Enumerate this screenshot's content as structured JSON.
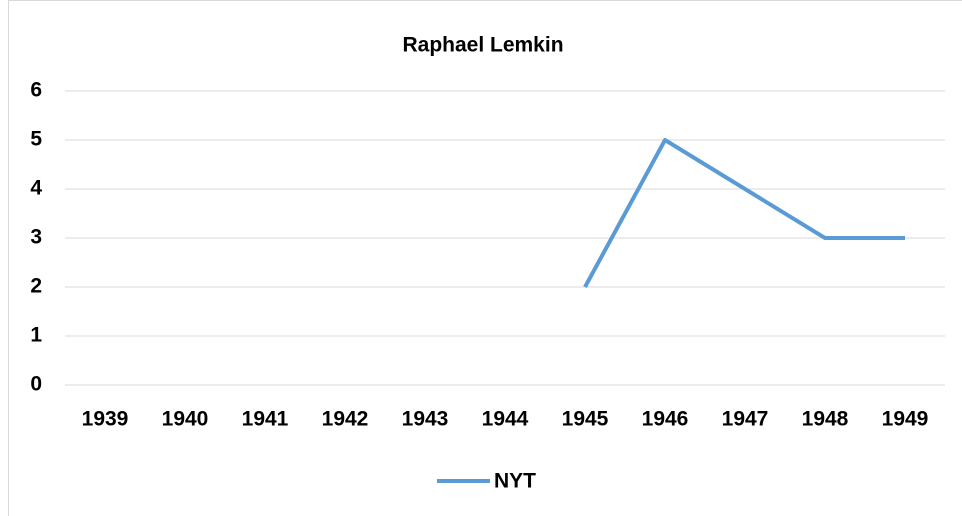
{
  "chart_data": {
    "type": "line",
    "title": "Raphael Lemkin",
    "categories": [
      "1939",
      "1940",
      "1941",
      "1942",
      "1943",
      "1944",
      "1945",
      "1946",
      "1947",
      "1948",
      "1949"
    ],
    "series": [
      {
        "name": "NYT",
        "color": "#5b9bd5",
        "values": [
          null,
          null,
          null,
          null,
          null,
          null,
          2,
          5,
          4,
          3,
          3
        ]
      }
    ],
    "ylim": [
      0,
      6
    ],
    "yticks": [
      0,
      1,
      2,
      3,
      4,
      5,
      6
    ],
    "grid": true,
    "legend": "bottom"
  }
}
